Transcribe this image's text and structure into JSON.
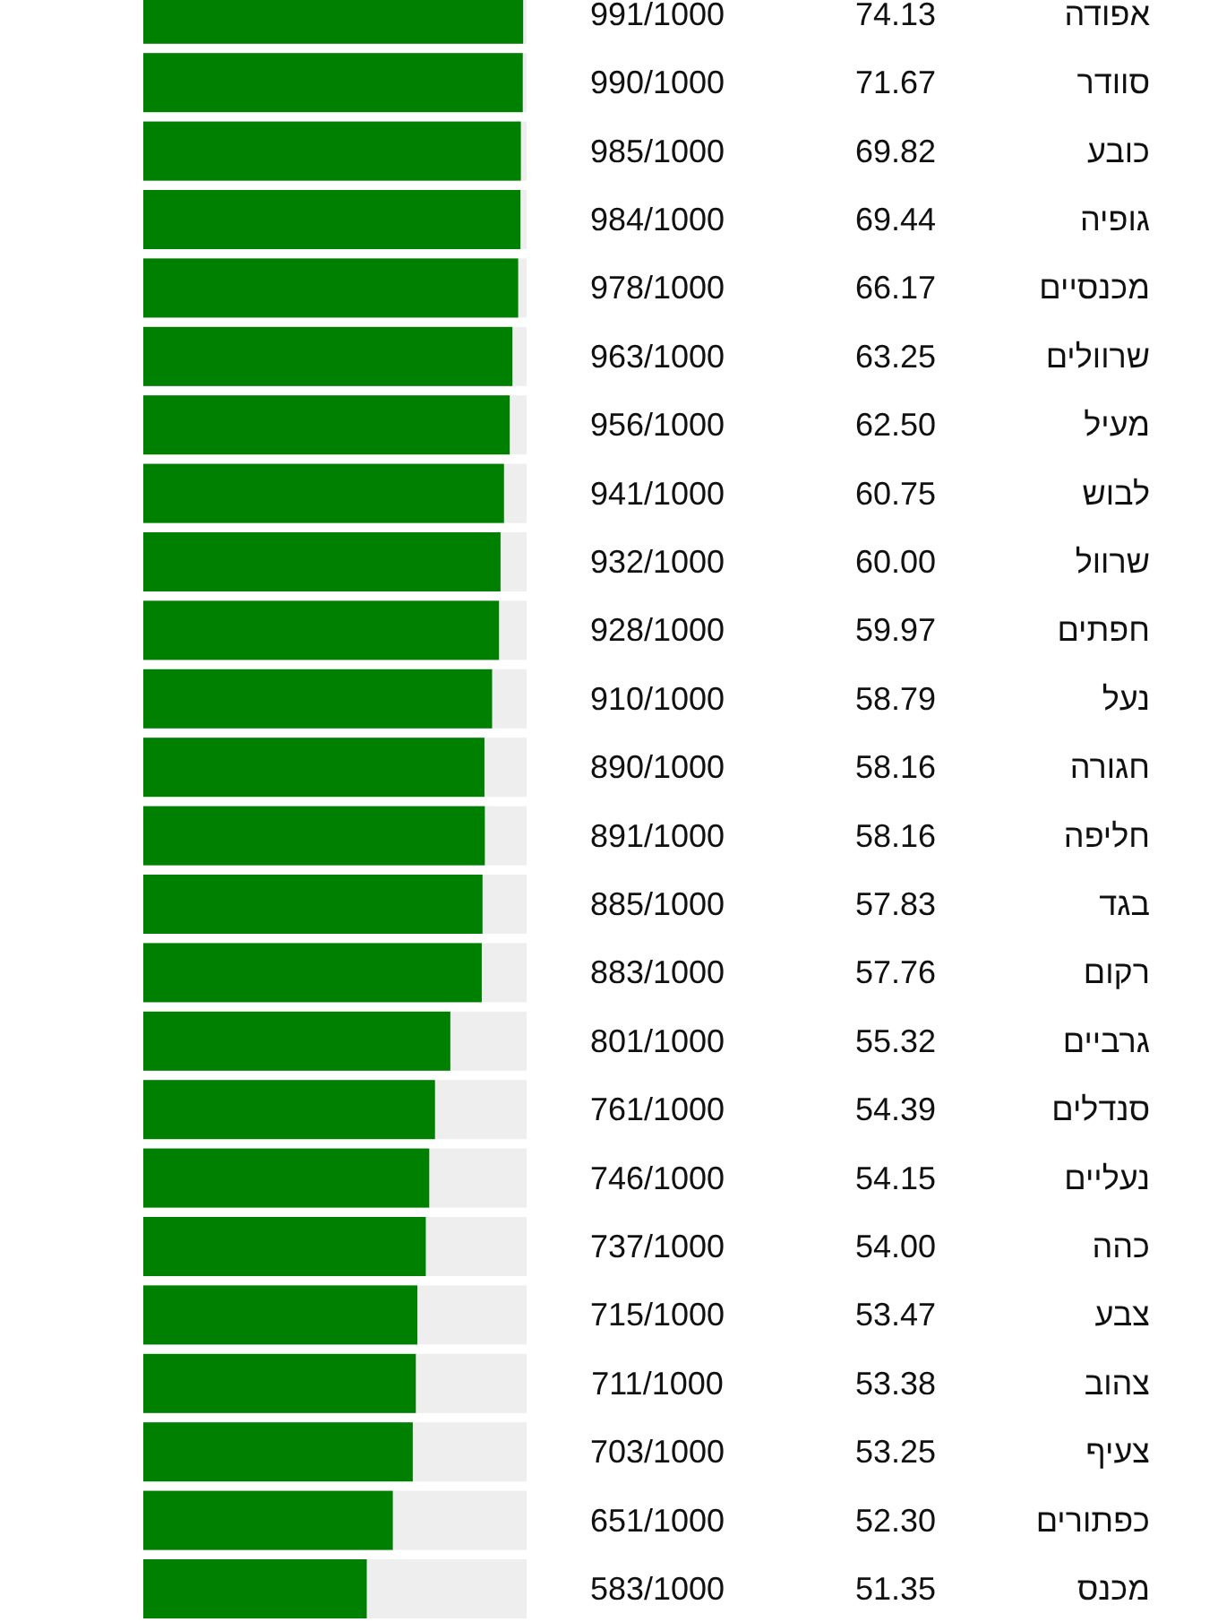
{
  "chart_data": {
    "type": "bar",
    "orientation": "horizontal",
    "color": "#008000",
    "xlim": [
      0,
      1000
    ],
    "categories": [
      "אפודה",
      "סוודר",
      "כובע",
      "גופיה",
      "מכנסיים",
      "שרוולים",
      "מעיל",
      "לבוש",
      "שרוול",
      "חפתים",
      "נעל",
      "חגורה",
      "חליפה",
      "בגד",
      "רקום",
      "גרביים",
      "סנדלים",
      "נעליים",
      "כהה",
      "צבע",
      "צהוב",
      "צעיף",
      "כפתורים",
      "מכנס"
    ],
    "values": [
      991,
      990,
      985,
      984,
      978,
      963,
      956,
      941,
      932,
      928,
      910,
      890,
      891,
      885,
      883,
      801,
      761,
      746,
      737,
      715,
      711,
      703,
      651,
      583
    ],
    "value_labels": [
      "991/1000",
      "990/1000",
      "985/1000",
      "984/1000",
      "978/1000",
      "963/1000",
      "956/1000",
      "941/1000",
      "932/1000",
      "928/1000",
      "910/1000",
      "890/1000",
      "891/1000",
      "885/1000",
      "883/1000",
      "801/1000",
      "761/1000",
      "746/1000",
      "737/1000",
      "715/1000",
      "711/1000",
      "703/1000",
      "651/1000",
      "583/1000"
    ],
    "annotations": [
      "74.13",
      "71.67",
      "69.82",
      "69.44",
      "66.17",
      "63.25",
      "62.50",
      "60.75",
      "60.00",
      "59.97",
      "58.79",
      "58.16",
      "58.16",
      "57.83",
      "57.76",
      "55.32",
      "54.39",
      "54.15",
      "54.00",
      "53.47",
      "53.38",
      "53.25",
      "52.30",
      "51.35"
    ]
  }
}
